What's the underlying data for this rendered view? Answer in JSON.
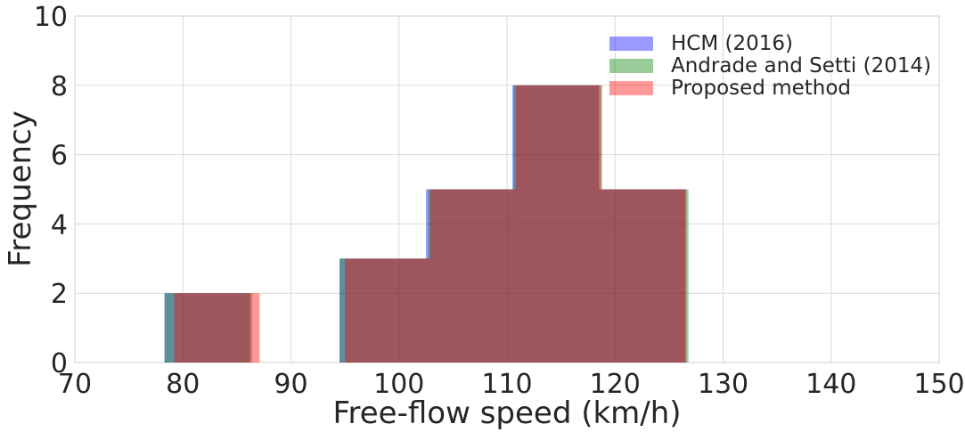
{
  "chart_data": {
    "type": "bar",
    "subtype": "overlaid-histogram",
    "xlabel": "Free-flow speed (km/h)",
    "ylabel": "Frequency",
    "xlim": [
      70,
      150
    ],
    "ylim": [
      0,
      10
    ],
    "xticks": [
      70,
      80,
      90,
      100,
      110,
      120,
      130,
      140,
      150
    ],
    "yticks": [
      0,
      2,
      4,
      6,
      8,
      10
    ],
    "grid": true,
    "legend_position": "top-right",
    "series": [
      {
        "name": "HCM (2016)",
        "color": "#0000ff",
        "opacity": 0.4,
        "bins": [
          {
            "x0": 78.3,
            "x1": 86.2,
            "count": 2
          },
          {
            "x0": 86.2,
            "x1": 94.5,
            "count": 0
          },
          {
            "x0": 94.5,
            "x1": 102.5,
            "count": 3
          },
          {
            "x0": 102.5,
            "x1": 110.5,
            "count": 5
          },
          {
            "x0": 110.5,
            "x1": 118.5,
            "count": 8
          },
          {
            "x0": 118.5,
            "x1": 126.5,
            "count": 5
          }
        ]
      },
      {
        "name": "Andrade and Setti (2014)",
        "color": "#008000",
        "opacity": 0.4,
        "bins": [
          {
            "x0": 78.3,
            "x1": 86.4,
            "count": 2
          },
          {
            "x0": 86.4,
            "x1": 94.5,
            "count": 0
          },
          {
            "x0": 94.5,
            "x1": 102.7,
            "count": 3
          },
          {
            "x0": 102.7,
            "x1": 110.6,
            "count": 5
          },
          {
            "x0": 110.6,
            "x1": 118.8,
            "count": 8
          },
          {
            "x0": 118.8,
            "x1": 126.8,
            "count": 5
          }
        ]
      },
      {
        "name": "Proposed method",
        "color": "#ff0000",
        "opacity": 0.4,
        "bins": [
          {
            "x0": 79.2,
            "x1": 87.1,
            "count": 2
          },
          {
            "x0": 87.1,
            "x1": 95.0,
            "count": 0
          },
          {
            "x0": 95.0,
            "x1": 102.9,
            "count": 3
          },
          {
            "x0": 102.9,
            "x1": 110.8,
            "count": 5
          },
          {
            "x0": 110.8,
            "x1": 118.7,
            "count": 8
          },
          {
            "x0": 118.7,
            "x1": 126.6,
            "count": 5
          }
        ]
      }
    ]
  }
}
